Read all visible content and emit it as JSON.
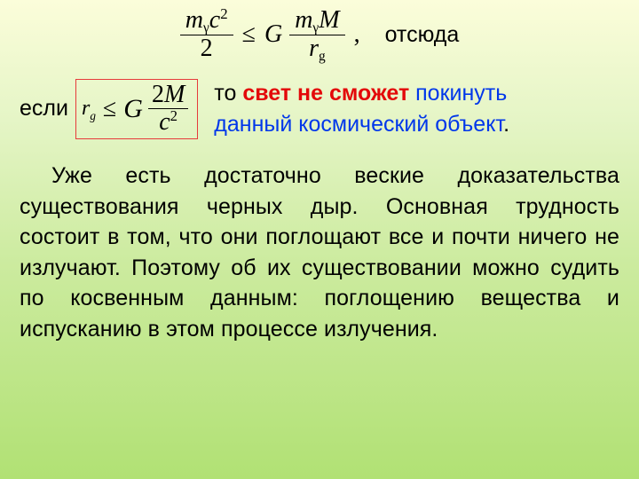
{
  "colors": {
    "bg_top": "#fbfdda",
    "bg_bottom": "#b1e174",
    "text": "#000000",
    "red": "#e30909",
    "blue": "#0037ea",
    "box_border": "#e63b3b"
  },
  "typography": {
    "body_family": "Arial",
    "formula_family": "Times New Roman",
    "body_size_pt": 19,
    "formula_size_pt": 21
  },
  "eq1": {
    "lhs_num_base": "m",
    "lhs_num_sub": "γ",
    "lhs_num_var2": "c",
    "lhs_num_sup": "2",
    "lhs_den": "2",
    "rel": "≤",
    "rhs_head": "G",
    "rhs_num_m": "m",
    "rhs_num_m_sub": "γ",
    "rhs_num_M": "M",
    "rhs_den_r": "r",
    "rhs_den_r_sub": "g",
    "comma": ",",
    "hence": "отсюда"
  },
  "eq2": {
    "prefix": "если",
    "r": "r",
    "r_sub": "g",
    "rel": "≤",
    "G": "G",
    "num_2": "2",
    "num_M": "M",
    "den_c": "c",
    "den_c_sup": "2"
  },
  "line2_rest": {
    "part_to": "то ",
    "part_red": "свет не сможет",
    "part_blue_1": " покинуть",
    "part_blue_2": "данный космический объект",
    "period": "."
  },
  "paragraph": "Уже есть достаточно веские доказательства существования черных дыр. Основная трудность состоит в том, что они поглощают все и почти ничего не излучают. Поэтому об их существовании можно судить по косвенным данным: поглощению вещества и испусканию в этом процессе излучения."
}
